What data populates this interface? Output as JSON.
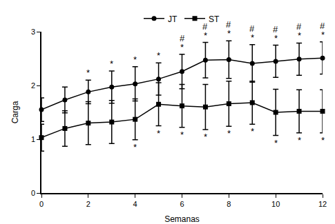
{
  "chart_data": {
    "type": "line",
    "x_label": "Semanas",
    "y_label": "Carga",
    "x": [
      0,
      1,
      2,
      3,
      4,
      5,
      6,
      7,
      8,
      9,
      10,
      11,
      12
    ],
    "xlim": [
      0,
      12
    ],
    "xticks": [
      0,
      2,
      4,
      6,
      8,
      10,
      12
    ],
    "ylim": [
      0,
      3
    ],
    "yticks": [
      0,
      1,
      2,
      3
    ],
    "grid": false,
    "legend": "top",
    "series": [
      {
        "name": "JT",
        "color": "#000000",
        "marker": "circle",
        "line_style": "solid",
        "values": [
          1.55,
          1.73,
          1.88,
          1.97,
          2.03,
          2.12,
          2.26,
          2.47,
          2.48,
          2.41,
          2.45,
          2.49,
          2.51
        ],
        "error": [
          0.22,
          0.24,
          0.22,
          0.3,
          0.32,
          0.3,
          0.32,
          0.33,
          0.35,
          0.35,
          0.3,
          0.3,
          0.3
        ]
      },
      {
        "name": "ST",
        "color": "#000000",
        "marker": "square",
        "line_style": "solid",
        "values": [
          1.03,
          1.2,
          1.3,
          1.32,
          1.37,
          1.65,
          1.62,
          1.6,
          1.66,
          1.68,
          1.5,
          1.52,
          1.52
        ],
        "error": [
          0.25,
          0.33,
          0.4,
          0.4,
          0.38,
          0.4,
          0.4,
          0.42,
          0.42,
          0.4,
          0.43,
          0.4,
          0.4
        ]
      }
    ],
    "annotations": [
      {
        "text": "*",
        "series": "JT",
        "position": "above",
        "x": [
          2,
          3,
          4,
          5,
          6,
          7,
          8,
          9,
          10,
          11,
          12
        ]
      },
      {
        "text": "#",
        "series": "JT",
        "position": "above",
        "x": [
          6,
          7,
          8,
          9,
          10,
          11,
          12
        ]
      },
      {
        "text": "*",
        "series": "ST",
        "position": "below",
        "x": [
          4,
          5,
          6,
          7,
          8,
          9,
          10,
          11,
          12
        ]
      }
    ]
  }
}
